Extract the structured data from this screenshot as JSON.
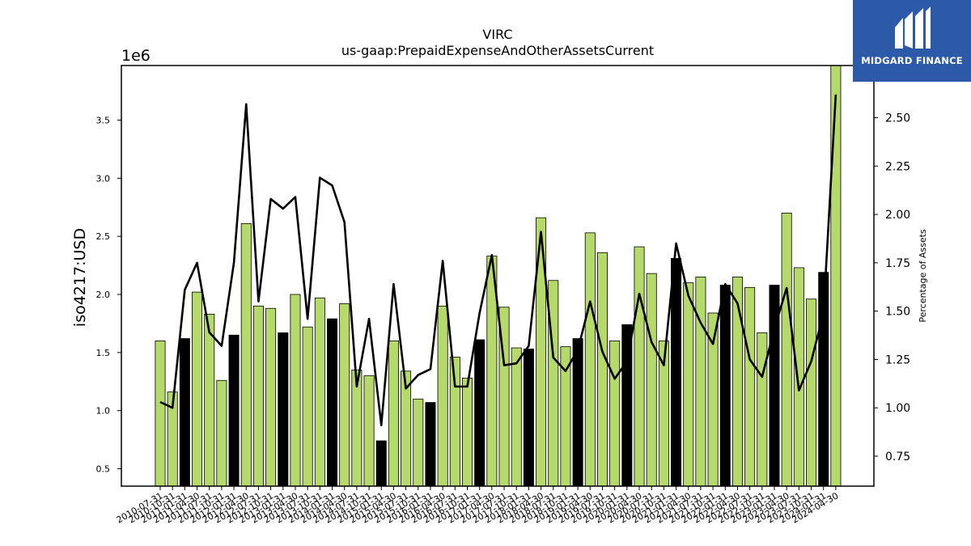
{
  "chart_data": {
    "type": "bar",
    "title": "VIRC",
    "subtitle": "us-gaap:PrepaidExpenseAndOtherAssetsCurrent",
    "ylabel": "iso4217:USD",
    "ylabel_right": "Percentage of Assets",
    "y_offset_label": "1e6",
    "ylim": [
      0.35,
      3.97
    ],
    "ylim_right": [
      0.595,
      2.77
    ],
    "yticks": [
      0.5,
      1.0,
      1.5,
      2.0,
      2.5,
      3.0,
      3.5
    ],
    "yticks_right": [
      0.75,
      1.0,
      1.25,
      1.5,
      1.75,
      2.0,
      2.25,
      2.5
    ],
    "bar_color": "#b5d96a",
    "highlight_color": "#000000",
    "line_color": "#000000",
    "categories": [
      "2010-07-31",
      "2010-10-31",
      "2011-01-31",
      "2011-04-30",
      "2011-07-31",
      "2011-10-31",
      "2012-01-31",
      "2012-04-30",
      "2012-07-31",
      "2012-10-31",
      "2013-01-31",
      "2013-04-30",
      "2013-07-31",
      "2013-10-31",
      "2014-01-31",
      "2014-04-30",
      "2014-07-31",
      "2014-10-31",
      "2015-01-31",
      "2015-04-30",
      "2015-07-31",
      "2015-10-31",
      "2016-01-31",
      "2016-04-30",
      "2016-07-31",
      "2016-10-31",
      "2017-01-31",
      "2017-04-30",
      "2017-07-31",
      "2017-10-31",
      "2018-01-31",
      "2018-04-30",
      "2018-07-31",
      "2018-10-31",
      "2019-01-31",
      "2019-04-30",
      "2019-07-31",
      "2019-10-31",
      "2020-01-31",
      "2020-04-30",
      "2020-07-31",
      "2020-10-31",
      "2021-01-31",
      "2021-04-30",
      "2021-07-31",
      "2021-10-31",
      "2022-01-31",
      "2022-04-30",
      "2022-07-31",
      "2022-10-31",
      "2023-01-31",
      "2023-04-30",
      "2023-07-31",
      "2023-10-31",
      "2024-01-31",
      "2024-04-30"
    ],
    "series": [
      {
        "values": [
          1.6,
          1.16,
          1.62,
          2.02,
          1.83,
          1.26,
          1.65,
          2.61,
          1.9,
          1.88,
          1.67,
          2.0,
          1.72,
          1.97,
          1.79,
          1.92,
          1.35,
          1.3,
          0.74,
          1.6,
          1.34,
          1.1,
          1.07,
          1.9,
          1.46,
          1.28,
          1.61,
          2.33,
          1.89,
          1.54,
          1.53,
          2.66,
          2.12,
          1.55,
          1.62,
          2.53,
          2.36,
          1.6,
          1.74,
          2.41,
          2.18,
          1.6,
          2.31,
          2.1,
          2.15,
          1.84,
          2.08,
          2.15,
          2.06,
          1.67,
          2.08,
          2.7,
          2.23,
          1.96,
          2.19,
          3.97
        ],
        "highlight": [
          false,
          false,
          true,
          false,
          false,
          false,
          true,
          false,
          false,
          false,
          true,
          false,
          false,
          false,
          true,
          false,
          false,
          false,
          true,
          false,
          false,
          false,
          true,
          false,
          false,
          false,
          true,
          false,
          false,
          false,
          true,
          false,
          false,
          false,
          true,
          false,
          false,
          false,
          true,
          false,
          false,
          false,
          true,
          false,
          false,
          false,
          true,
          false,
          false,
          false,
          true,
          false,
          false,
          false,
          true,
          false
        ]
      },
      {
        "name": "Percentage of Assets",
        "axis": "right",
        "values": [
          1.03,
          1.0,
          1.61,
          1.75,
          1.39,
          1.32,
          1.75,
          2.57,
          1.55,
          2.08,
          2.03,
          2.09,
          1.46,
          2.19,
          2.15,
          1.96,
          1.11,
          1.46,
          0.91,
          1.64,
          1.1,
          1.17,
          1.2,
          1.76,
          1.11,
          1.11,
          1.49,
          1.79,
          1.22,
          1.23,
          1.32,
          1.91,
          1.26,
          1.19,
          1.3,
          1.55,
          1.29,
          1.15,
          1.24,
          1.59,
          1.34,
          1.22,
          1.85,
          1.58,
          1.44,
          1.33,
          1.64,
          1.54,
          1.25,
          1.16,
          1.41,
          1.62,
          1.09,
          1.24,
          1.49,
          2.62
        ]
      }
    ]
  },
  "logo": {
    "brand": "MIDGARD FINANCE",
    "icon": "midgard-m-logo-icon"
  }
}
